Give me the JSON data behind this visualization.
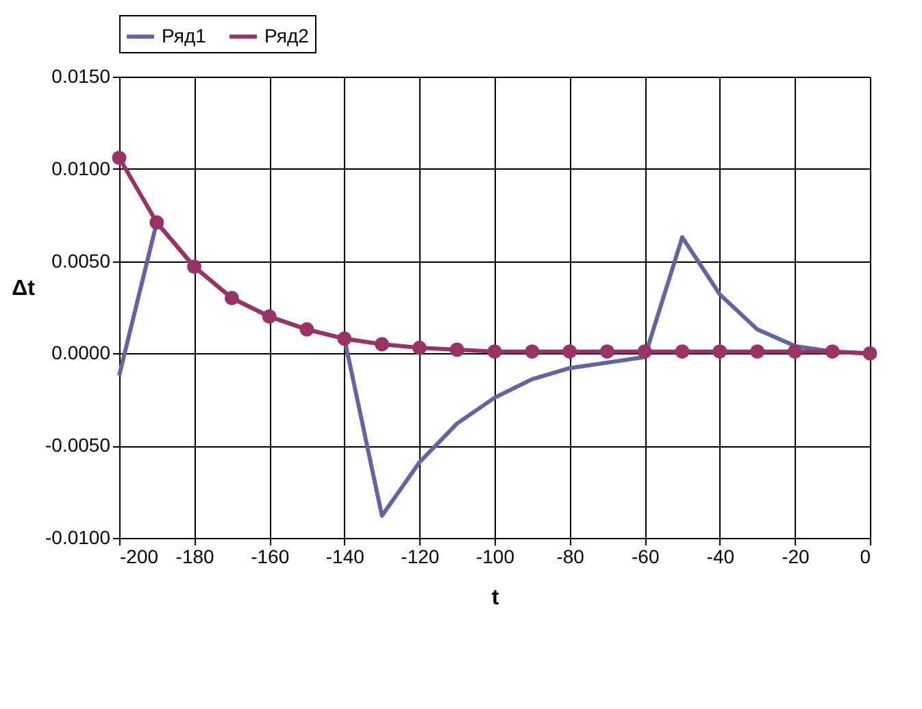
{
  "chart_data": {
    "type": "line",
    "xlabel": "t",
    "ylabel": "Δt",
    "x": [
      -200,
      -190,
      -180,
      -170,
      -160,
      -150,
      -140,
      -130,
      -120,
      -110,
      -100,
      -90,
      -80,
      -70,
      -60,
      -50,
      -40,
      -30,
      -20,
      -10,
      0
    ],
    "series": [
      {
        "name": "Ряд1",
        "color": "#6464a0",
        "marker": "none",
        "values": [
          -0.0012,
          0.0071,
          0.0047,
          0.003,
          0.002,
          0.0013,
          0.0008,
          -0.0088,
          -0.0059,
          -0.0038,
          -0.0024,
          -0.0014,
          -0.0008,
          -0.0005,
          -0.0002,
          0.0063,
          0.0032,
          0.0013,
          0.0004,
          0.0001,
          0.0
        ]
      },
      {
        "name": "Ряд2",
        "color": "#993366",
        "marker": "circle",
        "values": [
          0.0106,
          0.0071,
          0.0047,
          0.003,
          0.002,
          0.0013,
          0.0008,
          0.0005,
          0.0003,
          0.0002,
          0.0001,
          0.0001,
          0.0001,
          0.0001,
          0.0001,
          0.0001,
          0.0001,
          0.0001,
          0.0001,
          0.0001,
          0.0
        ]
      }
    ],
    "xlim": [
      -200,
      0
    ],
    "xticks": [
      -200,
      -180,
      -160,
      -140,
      -120,
      -100,
      -80,
      -60,
      -40,
      -20,
      0
    ],
    "ylim": [
      -0.01,
      0.015
    ],
    "yticks": [
      {
        "value": -0.01,
        "label": "-0.0100"
      },
      {
        "value": -0.005,
        "label": "-0.0050"
      },
      {
        "value": 0,
        "label": "0.0000"
      },
      {
        "value": 0.005,
        "label": "0.0050"
      },
      {
        "value": 0.01,
        "label": "0.0100"
      },
      {
        "value": 0.015,
        "label": "0.0150"
      }
    ],
    "grid": true,
    "legend": "top",
    "line_style": "solid"
  }
}
